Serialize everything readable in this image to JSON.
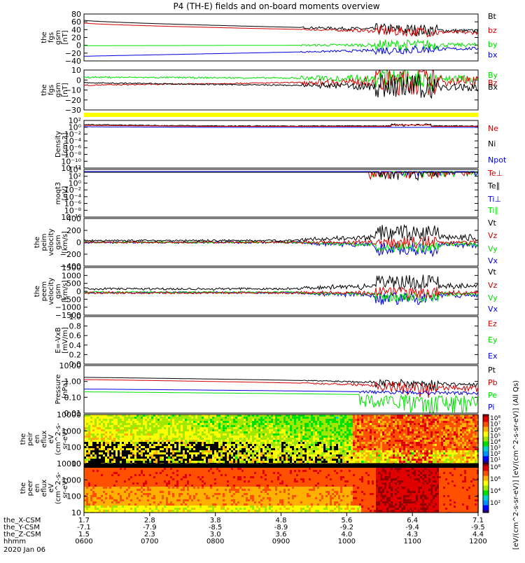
{
  "title": "P4 (TH-E) fields and on-board moments overview",
  "colors": {
    "black": "#000000",
    "red": "#d40000",
    "green": "#00e000",
    "blue": "#0000e0",
    "yellow": "#ffff00"
  },
  "chart_data": [
    {
      "type": "line",
      "id": "fgs-gsm-btot",
      "ylabel": [
        "the",
        "fgs",
        "gsm",
        "[nT]"
      ],
      "yticks": [
        "80",
        "60",
        "40",
        "20",
        "0",
        "−20",
        "−40"
      ],
      "ylim": [
        -40,
        80
      ],
      "legend": [
        {
          "label": "Bt",
          "color": "#000000"
        },
        {
          "label": "bz",
          "color": "#d40000"
        },
        {
          "label": "by",
          "color": "#00e000"
        },
        {
          "label": "bx",
          "color": "#0000e0"
        }
      ]
    },
    {
      "type": "line",
      "id": "fgs-gsm-components",
      "ylabel": [
        "the",
        "fgs",
        "gsm",
        "[nT]"
      ],
      "yticks": [
        "10",
        "0",
        "−10",
        "−20",
        "−30"
      ],
      "ylim": [
        -35,
        15
      ],
      "legend": [
        {
          "label": "By",
          "color": "#00e000"
        },
        {
          "label": "Bz",
          "color": "#d40000"
        },
        {
          "label": "Bx",
          "color": "#000000"
        }
      ]
    },
    {
      "type": "line",
      "id": "density",
      "ylabel": [
        "Density",
        "[cm-3]"
      ],
      "yticks": [
        "10²",
        "10⁰",
        "10⁻²",
        "10⁻⁴",
        "10⁻⁶",
        "10⁻⁸",
        "10⁻¹⁰",
        "10⁻¹²"
      ],
      "legend": [
        {
          "label": "Ne",
          "color": "#d40000"
        },
        {
          "label": "Ni",
          "color": "#000000"
        },
        {
          "label": "Npot",
          "color": "#0000e0"
        }
      ]
    },
    {
      "type": "line",
      "id": "temperature",
      "ylabel": [
        "moqt3",
        "[eV]"
      ],
      "yticks": [
        "10⁴",
        "10²",
        "10⁰",
        "10⁻²",
        "10⁻⁴",
        "10⁻⁶",
        "10⁻⁸",
        "10⁻¹⁰"
      ],
      "legend": [
        {
          "label": "Te⊥",
          "color": "#d40000"
        },
        {
          "label": "Te∥",
          "color": "#000000"
        },
        {
          "label": "Ti⊥",
          "color": "#0000e0"
        },
        {
          "label": "Ti∥",
          "color": "#00e000"
        }
      ]
    },
    {
      "type": "line",
      "id": "peim-velocity",
      "ylabel": [
        "the",
        "peim",
        "velocity",
        "gsm",
        "[km/s]"
      ],
      "yticks": [
        "400",
        "200",
        "0",
        "−200",
        "−400"
      ],
      "ylim": [
        -400,
        400
      ],
      "legend": [
        {
          "label": "Vt",
          "color": "#000000"
        },
        {
          "label": "Vz",
          "color": "#d40000"
        },
        {
          "label": "Vy",
          "color": "#00e000"
        },
        {
          "label": "Vx",
          "color": "#0000e0"
        }
      ]
    },
    {
      "type": "line",
      "id": "peem-velocity",
      "ylabel": [
        "the",
        "peem",
        "velocity",
        "gsm",
        "[km/s]"
      ],
      "yticks": [
        "1500",
        "1000",
        "500",
        "0",
        "−500",
        "−1000",
        "−1500"
      ],
      "ylim": [
        -1500,
        1500
      ],
      "legend": [
        {
          "label": "Vt",
          "color": "#000000"
        },
        {
          "label": "Vz",
          "color": "#d40000"
        },
        {
          "label": "Vy",
          "color": "#00e000"
        },
        {
          "label": "Vx",
          "color": "#0000e0"
        }
      ]
    },
    {
      "type": "line",
      "id": "efield",
      "ylabel": [
        "E=-VxB",
        "[mV/m]"
      ],
      "yticks": [
        "1.0",
        "0.8",
        "0.6",
        "0.4",
        "0.2",
        "0.0"
      ],
      "ylim": [
        0.0,
        1.0
      ],
      "legend": [
        {
          "label": "Ez",
          "color": "#d40000"
        },
        {
          "label": "Ey",
          "color": "#00e000"
        },
        {
          "label": "Ex",
          "color": "#0000e0"
        }
      ]
    },
    {
      "type": "line",
      "id": "pressure",
      "ylabel": [
        "Pressure",
        "[nPa]"
      ],
      "yticks": [
        "10.00",
        "1.00",
        "0.10",
        "0.01"
      ],
      "ylim": [
        0.01,
        10.0
      ],
      "legend": [
        {
          "label": "Pt",
          "color": "#000000"
        },
        {
          "label": "Pb",
          "color": "#d40000"
        },
        {
          "label": "Pe",
          "color": "#00e000"
        },
        {
          "label": "Pi",
          "color": "#0000e0"
        }
      ]
    },
    {
      "type": "heatmap",
      "id": "peir-eflux",
      "ylabel": [
        "the",
        "peir",
        "en",
        "eflux",
        "eV",
        "(cm^2-s-",
        "sr-eV)"
      ],
      "yticks": [
        "10000",
        "1000",
        "100",
        "10"
      ]
    },
    {
      "type": "heatmap",
      "id": "peer-eflux",
      "ylabel": [
        "the",
        "peer",
        "en",
        "eflux",
        "eV",
        "(cm^2-s-",
        "sr-eV)"
      ],
      "yticks": [
        "10000",
        "1000",
        "100",
        "10"
      ]
    }
  ],
  "colorbar": {
    "top_ticks": [
      "10⁸",
      "10⁷",
      "10⁶",
      "10⁵",
      "10⁴",
      "10³",
      "10²",
      "10¹"
    ],
    "bottom_ticks": [
      "10⁸",
      "10⁶",
      "10⁴",
      "10²"
    ],
    "label": "[eV/(cm^2-s-sr-eV)]  [eV/(cm^2-s-sr-eV)] (All Qs)"
  },
  "xaxis": {
    "rows": [
      {
        "label": "the_X-CSM",
        "values": [
          "1.7",
          "2.8",
          "3.8",
          "4.8",
          "5.6",
          "6.4",
          "7.1"
        ]
      },
      {
        "label": "the_Y-CSM",
        "values": [
          "-7.1",
          "-7.9",
          "-8.5",
          "-8.9",
          "-9.2",
          "-9.4",
          "-9.5"
        ]
      },
      {
        "label": "the_Z-CSM",
        "values": [
          "1.5",
          "2.3",
          "3.0",
          "3.6",
          "4.0",
          "4.3",
          "4.4"
        ]
      },
      {
        "label": "hhmm",
        "values": [
          "0600",
          "0700",
          "0800",
          "0900",
          "1000",
          "1100",
          "1200"
        ]
      }
    ],
    "date": "2020 Jan 06"
  }
}
